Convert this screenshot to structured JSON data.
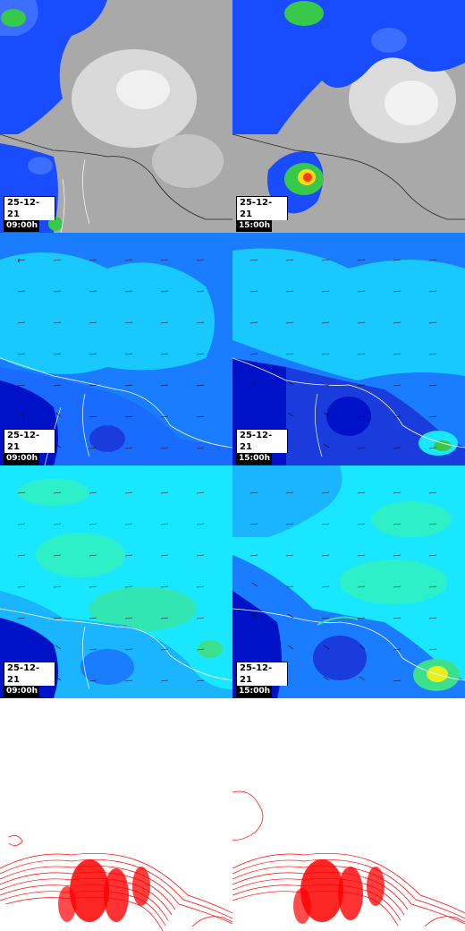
{
  "panels": [
    {
      "date": "25-12-21",
      "time": "09:00h",
      "kind": "precip"
    },
    {
      "date": "25-12-21",
      "time": "15:00h",
      "kind": "precip"
    },
    {
      "date": "25-12-21",
      "time": "09:00h",
      "kind": "wind"
    },
    {
      "date": "25-12-21",
      "time": "15:00h",
      "kind": "wind"
    },
    {
      "date": "25-12-21",
      "time": "09:00h",
      "kind": "wind2"
    },
    {
      "date": "25-12-21",
      "time": "15:00h",
      "kind": "wind2"
    },
    {
      "date": "",
      "time": "",
      "kind": "contour"
    },
    {
      "date": "",
      "time": "",
      "kind": "contour"
    }
  ],
  "colors": {
    "land_gray": "#b4b4b4",
    "precip_blue": "#1a4cff",
    "precip_green": "#38c84a",
    "precip_red": "#ff3a1a",
    "wind_cyan": "#19e6ff",
    "wind_blue": "#1a7cff",
    "wind_dark": "#0012c8",
    "contour_red": "#ff0000"
  }
}
